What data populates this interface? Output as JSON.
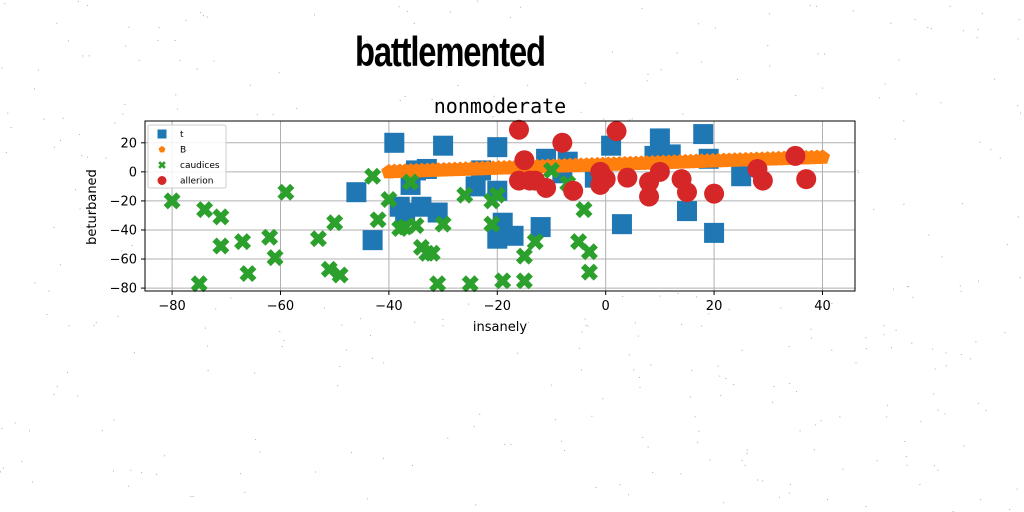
{
  "page": {
    "title": "battlemented"
  },
  "chart_data": {
    "type": "scatter",
    "title": "nonmoderate",
    "xlabel": "insanely",
    "ylabel": "beturbaned",
    "xlim": [
      -85,
      46
    ],
    "ylim": [
      -82,
      35
    ],
    "xticks": [
      -80,
      -60,
      -40,
      -20,
      0,
      20,
      40
    ],
    "yticks": [
      -80,
      -60,
      -40,
      -20,
      0,
      20
    ],
    "xtick_labels": [
      "−80",
      "−60",
      "−40",
      "−20",
      "0",
      "20",
      "40"
    ],
    "ytick_labels": [
      "−80",
      "−60",
      "−40",
      "−20",
      "0",
      "20"
    ],
    "grid": true,
    "legend_position": "upper-left",
    "series": [
      {
        "name": "t",
        "marker": "square",
        "color": "#1f77b4",
        "x": [
          -46,
          -43,
          -39,
          -38,
          -37,
          -36,
          -35,
          -34,
          -33,
          -31,
          -30,
          -24,
          -23,
          -20,
          -20,
          -20,
          -19,
          -17,
          -12,
          -11,
          -8,
          -7,
          -2,
          -1,
          1,
          3,
          9,
          10,
          12,
          15,
          18,
          19,
          20,
          25
        ],
        "y": [
          -14,
          -47,
          20,
          -24,
          -28,
          -9,
          1,
          -24,
          2,
          -28,
          18,
          -10,
          1,
          -46,
          17,
          -13,
          -35,
          -44,
          -38,
          9,
          -1,
          7,
          -4,
          1,
          18,
          -36,
          11,
          23,
          12,
          -27,
          26,
          9,
          -42,
          -3
        ]
      },
      {
        "name": "B",
        "marker": "pentagon",
        "color": "#ff7f0e",
        "x_start": -40,
        "x_end": 40,
        "y_start": 0,
        "y_end": 10,
        "count": 80
      },
      {
        "name": "caudices",
        "marker": "x",
        "color": "#2ca02c",
        "x": [
          -80,
          -75,
          -74,
          -71,
          -71,
          -67,
          -66,
          -62,
          -61,
          -59,
          -53,
          -51,
          -50,
          -49,
          -43,
          -42,
          -40,
          -38,
          -37,
          -36,
          -35,
          -34,
          -33,
          -32,
          -31,
          -30,
          -26,
          -25,
          -21,
          -21,
          -20,
          -19,
          -15,
          -15,
          -13,
          -10,
          -7,
          -5,
          -4,
          -3,
          -3
        ],
        "y": [
          -20,
          -77,
          -26,
          -31,
          -51,
          -48,
          -70,
          -45,
          -59,
          -14,
          -46,
          -67,
          -35,
          -71,
          -3,
          -33,
          -19,
          -39,
          -38,
          -7,
          -37,
          -52,
          -56,
          -56,
          -77,
          -36,
          -16,
          -77,
          -36,
          -20,
          -16,
          -75,
          -58,
          -75,
          -48,
          1,
          -8,
          -48,
          -26,
          -55,
          -69
        ]
      },
      {
        "name": "allerion",
        "marker": "circle",
        "color": "#d62728",
        "x": [
          -16,
          -16,
          -15,
          -14,
          -13,
          -11,
          -8,
          -6,
          -1,
          -1,
          0,
          2,
          4,
          8,
          8,
          10,
          14,
          15,
          20,
          28,
          29,
          35,
          37
        ],
        "y": [
          29,
          -6,
          8,
          -6,
          -6,
          -11,
          20,
          -13,
          0,
          -9,
          -5,
          28,
          -4,
          -7,
          -17,
          0,
          -5,
          -14,
          -15,
          2,
          -6,
          11,
          -5
        ]
      }
    ]
  }
}
